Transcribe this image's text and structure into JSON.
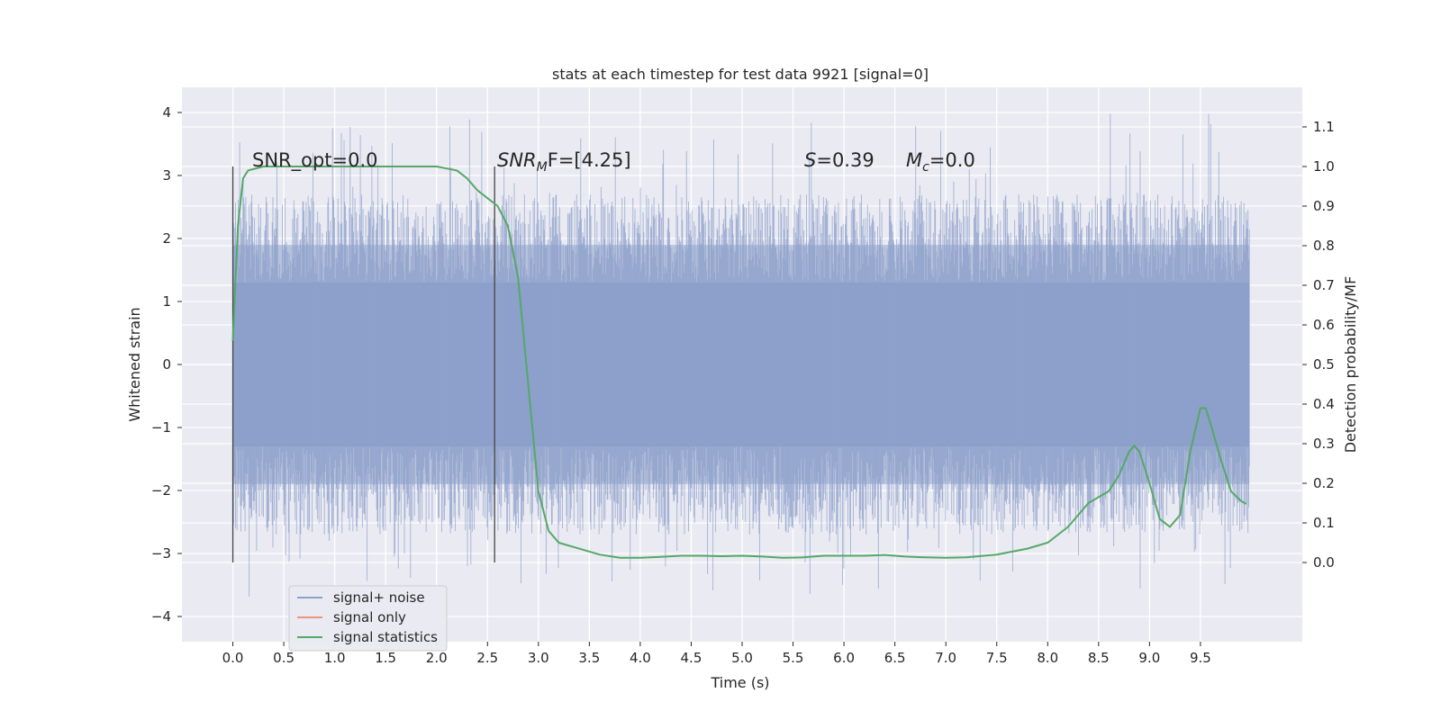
{
  "chart_data": {
    "type": "line",
    "title": "stats at each timestep for test data 9921 [signal=0]",
    "xlabel": "Time (s)",
    "ylabel": "Whitened strain",
    "y2label": "Detection probability/MF",
    "xlim": [
      -0.5,
      10.5
    ],
    "ylim": [
      -4.4,
      4.4
    ],
    "y2lim": [
      -0.2,
      1.2
    ],
    "x_ticks": [
      "0.0",
      "0.5",
      "1.0",
      "1.5",
      "2.0",
      "2.5",
      "3.0",
      "3.5",
      "4.0",
      "4.5",
      "5.0",
      "5.5",
      "6.0",
      "6.5",
      "7.0",
      "7.5",
      "8.0",
      "8.5",
      "9.0",
      "9.5"
    ],
    "x_tick_values": [
      0,
      0.5,
      1,
      1.5,
      2,
      2.5,
      3,
      3.5,
      4,
      4.5,
      5,
      5.5,
      6,
      6.5,
      7,
      7.5,
      8,
      8.5,
      9,
      9.5
    ],
    "y_ticks": [
      "4",
      "3",
      "2",
      "1",
      "0",
      "−1",
      "−2",
      "−3",
      "−4"
    ],
    "y_tick_values": [
      4,
      3,
      2,
      1,
      0,
      -1,
      -2,
      -3,
      -4
    ],
    "y2_ticks": [
      "1.1",
      "1.0",
      "0.9",
      "0.8",
      "0.7",
      "0.6",
      "0.5",
      "0.4",
      "0.3",
      "0.2",
      "0.1",
      "0.0"
    ],
    "y2_tick_values": [
      1.1,
      1.0,
      0.9,
      0.8,
      0.7,
      0.6,
      0.5,
      0.4,
      0.3,
      0.2,
      0.1,
      0.0
    ],
    "grid": true,
    "legend_position": "bottom-left",
    "annotations": {
      "snr_opt": "SNR_opt=0.0",
      "snr_mf_sym": "SNR",
      "snr_mf_sub": "M",
      "snr_mf_rest": "F=[4.25]",
      "s_sym": "S",
      "s_val": "=0.39",
      "mc_sym": "M",
      "mc_sub": "c",
      "mc_val": "=0.0"
    },
    "vlines": [
      0.0,
      2.57
    ],
    "series": [
      {
        "name": "signal+ noise",
        "color": "#8da0cb",
        "axis": "left",
        "x_range": [
          0.0,
          9.98
        ],
        "envelope_inner": 1.3,
        "envelope_outer": 2.7,
        "peak_max": 4.0,
        "peak_min": -3.7
      },
      {
        "name": "signal only",
        "color": "#e9967a",
        "axis": "left",
        "values": []
      },
      {
        "name": "signal statistics",
        "color": "#55a868",
        "axis": "right",
        "x": [
          0.0,
          0.05,
          0.1,
          0.15,
          0.3,
          0.5,
          1.0,
          1.5,
          2.0,
          2.2,
          2.3,
          2.4,
          2.5,
          2.6,
          2.7,
          2.8,
          2.9,
          3.0,
          3.1,
          3.2,
          3.4,
          3.6,
          3.8,
          4.0,
          4.2,
          4.4,
          4.6,
          4.8,
          5.0,
          5.2,
          5.4,
          5.6,
          5.8,
          6.0,
          6.2,
          6.4,
          6.6,
          6.8,
          7.0,
          7.2,
          7.5,
          7.8,
          8.0,
          8.2,
          8.4,
          8.6,
          8.7,
          8.8,
          8.85,
          8.9,
          9.0,
          9.1,
          9.2,
          9.3,
          9.4,
          9.5,
          9.55,
          9.6,
          9.7,
          9.8,
          9.9,
          9.95
        ],
        "y": [
          0.56,
          0.85,
          0.97,
          0.99,
          1.0,
          1.0,
          1.0,
          1.0,
          1.0,
          0.99,
          0.97,
          0.94,
          0.92,
          0.9,
          0.85,
          0.72,
          0.45,
          0.18,
          0.08,
          0.05,
          0.035,
          0.02,
          0.012,
          0.012,
          0.014,
          0.017,
          0.017,
          0.016,
          0.017,
          0.015,
          0.012,
          0.013,
          0.017,
          0.017,
          0.017,
          0.019,
          0.015,
          0.013,
          0.012,
          0.013,
          0.02,
          0.035,
          0.05,
          0.09,
          0.15,
          0.18,
          0.22,
          0.28,
          0.295,
          0.28,
          0.2,
          0.11,
          0.09,
          0.12,
          0.28,
          0.39,
          0.39,
          0.35,
          0.26,
          0.18,
          0.155,
          0.148
        ]
      }
    ]
  }
}
